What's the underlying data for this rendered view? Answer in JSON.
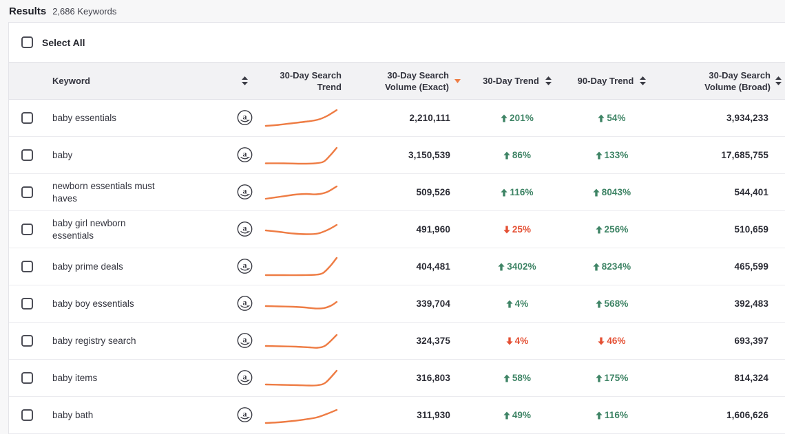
{
  "page": {
    "title": "Results",
    "subtitle": "2,686 Keywords"
  },
  "toolbar": {
    "select_all_label": "Select All"
  },
  "colors": {
    "accent_orange": "#ee7c44",
    "trend_up_green": "#3e8465",
    "trend_down_red": "#e44f33",
    "icon_dark": "#3a3b44",
    "sparkline": "#ee7c44"
  },
  "icons": {
    "keyword_sort": "sort-updown-icon",
    "vol_exact_sort": "sorted-desc-triangle-icon",
    "amazon_badge": "amazon-a-icon"
  },
  "table": {
    "columns": {
      "keyword": {
        "label": "Keyword",
        "sortable": true
      },
      "trend_chart": {
        "label": "30-Day Search Trend",
        "sortable": false
      },
      "vol_exact": {
        "label": "30-Day Search Volume (Exact)",
        "sortable": true,
        "sorted": "desc"
      },
      "trend30": {
        "label": "30-Day Trend",
        "sortable": true
      },
      "trend90": {
        "label": "90-Day Trend",
        "sortable": true
      },
      "vol_broad": {
        "label": "30-Day Search Volume (Broad)",
        "sortable": true
      }
    },
    "rows": [
      {
        "keyword": "baby essentials",
        "vol_exact": "2,210,111",
        "trend30": {
          "dir": "up",
          "value": "201%"
        },
        "trend90": {
          "dir": "up",
          "value": "54%"
        },
        "vol_broad": "3,934,233",
        "sparkline": [
          [
            0,
            28
          ],
          [
            18,
            26.5
          ],
          [
            38,
            24
          ],
          [
            58,
            21.5
          ],
          [
            72,
            19
          ],
          [
            84,
            14
          ],
          [
            98,
            5
          ]
        ]
      },
      {
        "keyword": "baby",
        "vol_exact": "3,150,539",
        "trend30": {
          "dir": "up",
          "value": "86%"
        },
        "trend90": {
          "dir": "up",
          "value": "133%"
        },
        "vol_broad": "17,685,755",
        "sparkline": [
          [
            0,
            28.5
          ],
          [
            25,
            28.5
          ],
          [
            50,
            29
          ],
          [
            68,
            28.5
          ],
          [
            80,
            26
          ],
          [
            89,
            17
          ],
          [
            98,
            6
          ]
        ]
      },
      {
        "keyword": "newborn essentials must haves",
        "vol_exact": "509,526",
        "trend30": {
          "dir": "up",
          "value": "116%"
        },
        "trend90": {
          "dir": "up",
          "value": "8043%"
        },
        "vol_broad": "544,401",
        "sparkline": [
          [
            0,
            26
          ],
          [
            20,
            23
          ],
          [
            40,
            20
          ],
          [
            56,
            19
          ],
          [
            70,
            19.5
          ],
          [
            84,
            16.5
          ],
          [
            98,
            8
          ]
        ]
      },
      {
        "keyword": "baby girl newborn essentials",
        "vol_exact": "491,960",
        "trend30": {
          "dir": "down",
          "value": "25%"
        },
        "trend90": {
          "dir": "up",
          "value": "256%"
        },
        "vol_broad": "510,659",
        "sparkline": [
          [
            0,
            18
          ],
          [
            18,
            20
          ],
          [
            38,
            22.5
          ],
          [
            56,
            23.5
          ],
          [
            72,
            22.5
          ],
          [
            86,
            17
          ],
          [
            98,
            10
          ]
        ]
      },
      {
        "keyword": "baby prime deals",
        "vol_exact": "404,481",
        "trend30": {
          "dir": "up",
          "value": "3402%"
        },
        "trend90": {
          "dir": "up",
          "value": "8234%"
        },
        "vol_broad": "465,599",
        "sparkline": [
          [
            0,
            29
          ],
          [
            25,
            29
          ],
          [
            50,
            29
          ],
          [
            68,
            28.5
          ],
          [
            79,
            26
          ],
          [
            89,
            16
          ],
          [
            98,
            4
          ]
        ]
      },
      {
        "keyword": "baby boy essentials",
        "vol_exact": "339,704",
        "trend30": {
          "dir": "up",
          "value": "4%"
        },
        "trend90": {
          "dir": "up",
          "value": "568%"
        },
        "vol_broad": "392,483",
        "sparkline": [
          [
            0,
            20
          ],
          [
            18,
            20.5
          ],
          [
            38,
            21
          ],
          [
            54,
            22
          ],
          [
            68,
            23.5
          ],
          [
            80,
            23
          ],
          [
            90,
            19.5
          ],
          [
            98,
            14
          ]
        ]
      },
      {
        "keyword": "baby registry search",
        "vol_exact": "324,375",
        "trend30": {
          "dir": "down",
          "value": "4%"
        },
        "trend90": {
          "dir": "down",
          "value": "46%"
        },
        "vol_broad": "693,397",
        "sparkline": [
          [
            0,
            24
          ],
          [
            20,
            24.5
          ],
          [
            42,
            25
          ],
          [
            60,
            26
          ],
          [
            72,
            26.5
          ],
          [
            83,
            23
          ],
          [
            98,
            8
          ]
        ]
      },
      {
        "keyword": "baby items",
        "vol_exact": "316,803",
        "trend30": {
          "dir": "up",
          "value": "58%"
        },
        "trend90": {
          "dir": "up",
          "value": "175%"
        },
        "vol_broad": "814,324",
        "sparkline": [
          [
            0,
            26
          ],
          [
            22,
            26.5
          ],
          [
            44,
            27
          ],
          [
            60,
            27.5
          ],
          [
            72,
            27
          ],
          [
            83,
            23
          ],
          [
            98,
            6
          ]
        ]
      },
      {
        "keyword": "baby bath",
        "vol_exact": "311,930",
        "trend30": {
          "dir": "up",
          "value": "49%"
        },
        "trend90": {
          "dir": "up",
          "value": "116%"
        },
        "vol_broad": "1,606,626",
        "sparkline": [
          [
            0,
            28
          ],
          [
            18,
            27
          ],
          [
            38,
            25
          ],
          [
            56,
            22.5
          ],
          [
            70,
            20
          ],
          [
            84,
            15
          ],
          [
            98,
            9
          ]
        ]
      }
    ]
  }
}
